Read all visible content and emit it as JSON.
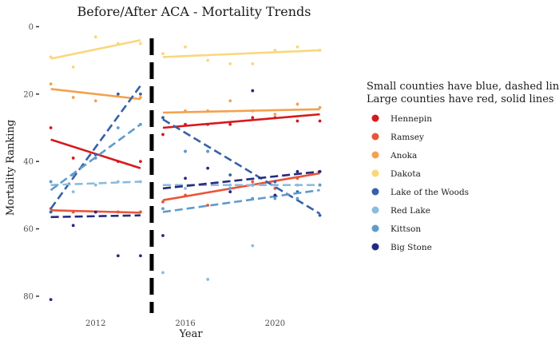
{
  "chart_data": {
    "type": "scatter",
    "title": "Before/After ACA - Mortality Trends",
    "xlabel": "Year",
    "ylabel": "Mortality Ranking",
    "xlim": [
      2009.8,
      2022.8
    ],
    "ylim": [
      -2,
      85
    ],
    "y_reversed": true,
    "x_ticks": [
      2012,
      2016,
      2020
    ],
    "y_ticks": [
      0,
      20,
      40,
      60,
      80
    ],
    "grid": false,
    "separator_year": 2014.5,
    "legend": {
      "title_lines": [
        "Small counties have blue, dashed lines",
        "Large counties have red, solid lines"
      ],
      "position": "right"
    },
    "series": [
      {
        "name": "Hennepin",
        "color": "#d7191c",
        "line_style": "solid",
        "points": [
          [
            2010,
            30
          ],
          [
            2011,
            39
          ],
          [
            2012,
            55
          ],
          [
            2013,
            40
          ],
          [
            2014,
            40
          ],
          [
            2015,
            32
          ],
          [
            2016,
            29
          ],
          [
            2017,
            29
          ],
          [
            2018,
            29
          ],
          [
            2019,
            27
          ],
          [
            2020,
            27
          ],
          [
            2021,
            28
          ],
          [
            2022,
            28
          ]
        ],
        "fit_before": [
          [
            2010,
            33.5
          ],
          [
            2014,
            42
          ]
        ],
        "fit_after": [
          [
            2015,
            30
          ],
          [
            2022,
            26
          ]
        ]
      },
      {
        "name": "Ramsey",
        "color": "#e8553a",
        "line_style": "solid",
        "points": [
          [
            2010,
            54
          ],
          [
            2011,
            55
          ],
          [
            2012,
            55
          ],
          [
            2013,
            55
          ],
          [
            2014,
            55
          ],
          [
            2015,
            52
          ],
          [
            2016,
            50
          ],
          [
            2017,
            53
          ],
          [
            2018,
            49
          ],
          [
            2019,
            46
          ],
          [
            2020,
            48
          ],
          [
            2021,
            45
          ],
          [
            2022,
            43
          ]
        ],
        "fit_before": [
          [
            2010,
            54.5
          ],
          [
            2014,
            55.2
          ]
        ],
        "fit_after": [
          [
            2015,
            51.5
          ],
          [
            2022,
            43.5
          ]
        ]
      },
      {
        "name": "Anoka",
        "color": "#f4a14e",
        "line_style": "solid",
        "points": [
          [
            2010,
            17
          ],
          [
            2011,
            21
          ],
          [
            2012,
            22
          ],
          [
            2013,
            20
          ],
          [
            2014,
            21
          ],
          [
            2015,
            27
          ],
          [
            2016,
            25
          ],
          [
            2017,
            25
          ],
          [
            2018,
            22
          ],
          [
            2019,
            25
          ],
          [
            2020,
            26
          ],
          [
            2021,
            23
          ],
          [
            2022,
            24
          ]
        ],
        "fit_before": [
          [
            2010,
            18.5
          ],
          [
            2014,
            21.5
          ]
        ],
        "fit_after": [
          [
            2015,
            25.5
          ],
          [
            2022,
            24.5
          ]
        ]
      },
      {
        "name": "Dakota",
        "color": "#fbd77a",
        "line_style": "solid",
        "points": [
          [
            2010,
            9
          ],
          [
            2011,
            12
          ],
          [
            2012,
            3
          ],
          [
            2013,
            5
          ],
          [
            2014,
            5
          ],
          [
            2015,
            8
          ],
          [
            2016,
            6
          ],
          [
            2017,
            10
          ],
          [
            2018,
            11
          ],
          [
            2019,
            11
          ],
          [
            2020,
            7
          ],
          [
            2021,
            6
          ],
          [
            2022,
            7
          ]
        ],
        "fit_before": [
          [
            2010,
            9.5
          ],
          [
            2014,
            4
          ]
        ],
        "fit_after": [
          [
            2015,
            9
          ],
          [
            2022,
            7
          ]
        ]
      },
      {
        "name": "Lake of the Woods",
        "color": "#3660a8",
        "line_style": "dashed",
        "points": [
          [
            2010,
            55
          ],
          [
            2011,
            44
          ],
          [
            2012,
            38
          ],
          [
            2013,
            20
          ],
          [
            2014,
            20
          ],
          [
            2015,
            27
          ],
          [
            2016,
            37
          ],
          [
            2017,
            37
          ],
          [
            2018,
            44
          ],
          [
            2019,
            47
          ],
          [
            2020,
            46
          ],
          [
            2021,
            49
          ],
          [
            2022,
            56
          ]
        ],
        "fit_before": [
          [
            2010,
            54
          ],
          [
            2014,
            17.5
          ]
        ],
        "fit_after": [
          [
            2015,
            27.5
          ],
          [
            2022,
            55.5
          ]
        ]
      },
      {
        "name": "Red Lake",
        "color": "#8bbcdc",
        "line_style": "dashed",
        "points": [
          [
            2010,
            46
          ],
          [
            2011,
            49
          ],
          [
            2012,
            47
          ],
          [
            2013,
            46
          ],
          [
            2014,
            46
          ],
          [
            2015,
            73
          ],
          [
            2016,
            48
          ],
          [
            2017,
            75
          ],
          [
            2018,
            47
          ],
          [
            2019,
            65
          ],
          [
            2020,
            47
          ],
          [
            2021,
            47
          ],
          [
            2022,
            47
          ]
        ],
        "fit_before": [
          [
            2010,
            47
          ],
          [
            2014,
            46
          ]
        ],
        "fit_after": [
          [
            2015,
            47
          ],
          [
            2022,
            47
          ]
        ]
      },
      {
        "name": "Kittson",
        "color": "#5f9bcc",
        "line_style": "dashed",
        "points": [
          [
            2010,
            46
          ],
          [
            2011,
            44
          ],
          [
            2012,
            39
          ],
          [
            2013,
            30
          ],
          [
            2014,
            29
          ],
          [
            2015,
            54
          ],
          [
            2016,
            37
          ],
          [
            2017,
            37
          ],
          [
            2018,
            48
          ],
          [
            2019,
            51
          ],
          [
            2020,
            51
          ],
          [
            2021,
            51
          ],
          [
            2022,
            47
          ]
        ],
        "fit_before": [
          [
            2010,
            48.5
          ],
          [
            2014,
            29
          ]
        ],
        "fit_after": [
          [
            2015,
            55
          ],
          [
            2022,
            48.5
          ]
        ]
      },
      {
        "name": "Big Stone",
        "color": "#262a7e",
        "line_style": "dashed",
        "points": [
          [
            2010,
            81
          ],
          [
            2011,
            59
          ],
          [
            2012,
            55
          ],
          [
            2013,
            68
          ],
          [
            2014,
            68
          ],
          [
            2015,
            62
          ],
          [
            2016,
            45
          ],
          [
            2017,
            42
          ],
          [
            2018,
            49
          ],
          [
            2019,
            19
          ],
          [
            2020,
            50
          ],
          [
            2021,
            43
          ],
          [
            2022,
            43
          ]
        ],
        "fit_before": [
          [
            2010,
            56.5
          ],
          [
            2014,
            56
          ]
        ],
        "fit_after": [
          [
            2015,
            48
          ],
          [
            2022,
            43
          ]
        ]
      }
    ]
  }
}
